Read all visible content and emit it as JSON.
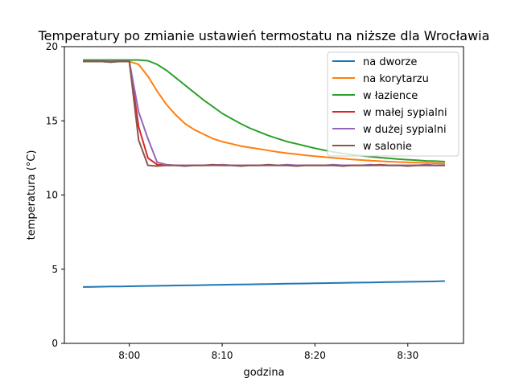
{
  "chart_data": {
    "type": "line",
    "title": "Temperatury po zmianie ustawień termostatu na niższe dla Wrocławia",
    "xlabel": "godzina",
    "ylabel": "temperatura (°C)",
    "xlim": [
      "7:53",
      "8:36"
    ],
    "ylim": [
      0,
      20
    ],
    "xticks": [
      "8:00",
      "8:10",
      "8:20",
      "8:30"
    ],
    "yticks": [
      "0",
      "5",
      "10",
      "15",
      "20"
    ],
    "grid": false,
    "legend_position": "top-right",
    "x": [
      "7:55",
      "7:56",
      "7:57",
      "7:58",
      "7:59",
      "8:00",
      "8:01",
      "8:02",
      "8:03",
      "8:04",
      "8:05",
      "8:06",
      "8:07",
      "8:08",
      "8:09",
      "8:10",
      "8:11",
      "8:12",
      "8:13",
      "8:14",
      "8:15",
      "8:16",
      "8:17",
      "8:18",
      "8:19",
      "8:20",
      "8:21",
      "8:22",
      "8:23",
      "8:24",
      "8:25",
      "8:26",
      "8:27",
      "8:28",
      "8:29",
      "8:30",
      "8:31",
      "8:32",
      "8:33",
      "8:34"
    ],
    "series": [
      {
        "name": "na dworze",
        "color": "#1f77b4",
        "values": [
          3.8,
          3.81,
          3.82,
          3.83,
          3.84,
          3.85,
          3.86,
          3.87,
          3.88,
          3.89,
          3.9,
          3.91,
          3.92,
          3.93,
          3.94,
          3.95,
          3.96,
          3.97,
          3.98,
          3.99,
          4.0,
          4.01,
          4.02,
          4.03,
          4.04,
          4.05,
          4.06,
          4.07,
          4.08,
          4.09,
          4.1,
          4.11,
          4.12,
          4.13,
          4.14,
          4.15,
          4.16,
          4.17,
          4.18,
          4.2
        ]
      },
      {
        "name": "na korytarzu",
        "color": "#ff7f0e",
        "values": [
          19.0,
          19.0,
          19.0,
          19.0,
          19.0,
          19.0,
          18.8,
          18.0,
          17.0,
          16.1,
          15.4,
          14.8,
          14.4,
          14.1,
          13.8,
          13.6,
          13.45,
          13.3,
          13.2,
          13.1,
          13.0,
          12.9,
          12.82,
          12.75,
          12.68,
          12.62,
          12.56,
          12.5,
          12.45,
          12.4,
          12.36,
          12.32,
          12.28,
          12.25,
          12.22,
          12.2,
          12.18,
          12.16,
          12.14,
          12.12
        ]
      },
      {
        "name": "w łazience",
        "color": "#2ca02c",
        "values": [
          19.1,
          19.1,
          19.1,
          19.1,
          19.1,
          19.1,
          19.1,
          19.05,
          18.8,
          18.4,
          17.9,
          17.4,
          16.9,
          16.4,
          15.95,
          15.5,
          15.15,
          14.8,
          14.5,
          14.25,
          14.0,
          13.8,
          13.6,
          13.45,
          13.3,
          13.15,
          13.02,
          12.9,
          12.8,
          12.72,
          12.65,
          12.58,
          12.52,
          12.47,
          12.42,
          12.38,
          12.34,
          12.3,
          12.28,
          12.25
        ]
      },
      {
        "name": "w małej sypialni",
        "color": "#d62728",
        "values": [
          19.0,
          19.0,
          19.0,
          19.0,
          19.0,
          19.0,
          14.6,
          12.5,
          12.05,
          12.0,
          12.0,
          12.0,
          12.0,
          12.0,
          12.0,
          12.0,
          12.0,
          12.0,
          12.0,
          12.0,
          12.0,
          12.0,
          12.0,
          12.0,
          12.0,
          12.0,
          12.0,
          12.0,
          12.0,
          12.0,
          12.0,
          12.0,
          12.0,
          12.0,
          12.0,
          12.0,
          12.0,
          12.0,
          12.0,
          12.0
        ]
      },
      {
        "name": "w dużej sypialni",
        "color": "#9467bd",
        "values": [
          19.0,
          19.0,
          19.0,
          19.0,
          19.0,
          19.0,
          15.6,
          13.8,
          12.2,
          12.05,
          12.0,
          12.0,
          12.0,
          12.0,
          12.0,
          12.05,
          12.0,
          12.0,
          12.0,
          12.0,
          12.0,
          12.0,
          12.05,
          12.0,
          12.0,
          12.0,
          12.0,
          12.05,
          12.0,
          12.0,
          12.0,
          12.05,
          12.0,
          12.0,
          12.0,
          12.0,
          12.0,
          12.05,
          12.0,
          12.0
        ]
      },
      {
        "name": "w salonie",
        "color": "#8c564b",
        "values": [
          19.0,
          19.0,
          19.0,
          18.95,
          19.0,
          19.0,
          13.7,
          12.0,
          11.95,
          12.0,
          12.0,
          11.95,
          12.0,
          12.0,
          12.05,
          12.0,
          12.0,
          11.95,
          12.0,
          12.0,
          12.05,
          12.0,
          12.0,
          11.95,
          12.0,
          12.0,
          12.0,
          12.0,
          11.95,
          12.0,
          12.0,
          12.0,
          12.05,
          12.0,
          12.0,
          11.95,
          12.0,
          12.0,
          12.0,
          12.0
        ]
      }
    ]
  }
}
